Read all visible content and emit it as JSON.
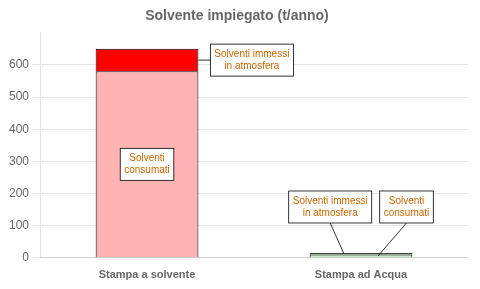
{
  "chart_data": {
    "type": "bar",
    "title": "Solvente impiegato (t/anno)",
    "categories": [
      "Stampa a solvente",
      "Stampa ad Acqua"
    ],
    "stacked": true,
    "series": [
      {
        "values": [
          580,
          10
        ],
        "colors": [
          "#FFB3B3",
          "#C8E6C8"
        ],
        "annotations": [
          "Solventi\nconsumati",
          "Solventi\nconsumati"
        ]
      },
      {
        "values": [
          70,
          5
        ],
        "colors": [
          "#FF0000",
          "#2E6B2E"
        ],
        "annotations": [
          "Solventi immessi\nin atmosfera",
          "Solventi immessi\nin atmosfera"
        ]
      }
    ],
    "ylim": [
      0,
      700
    ],
    "yticks": [
      0,
      100,
      200,
      300,
      400,
      500,
      600
    ],
    "grid": true
  }
}
